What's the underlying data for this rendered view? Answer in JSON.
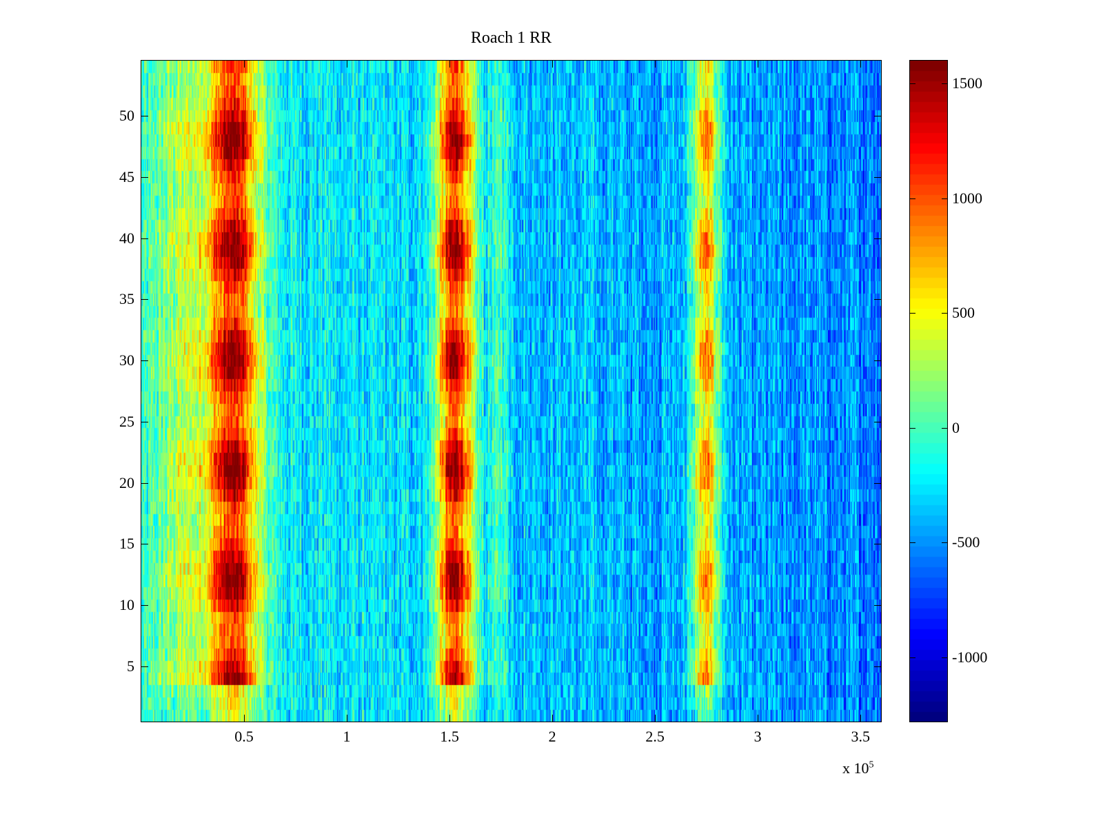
{
  "chart_data": {
    "type": "heatmap",
    "title": "Roach 1 RR",
    "xlabel": "",
    "ylabel": "",
    "x_multiplier_label": "x 10",
    "x_multiplier_exponent": "5",
    "xlim": [
      0,
      360000
    ],
    "ylim": [
      0.5,
      54.5
    ],
    "rows": 54,
    "columns": 720,
    "x_ticks": [
      {
        "value": 50000,
        "label": "0.5"
      },
      {
        "value": 100000,
        "label": "1"
      },
      {
        "value": 150000,
        "label": "1.5"
      },
      {
        "value": 200000,
        "label": "2"
      },
      {
        "value": 250000,
        "label": "2.5"
      },
      {
        "value": 300000,
        "label": "3"
      },
      {
        "value": 350000,
        "label": "3.5"
      }
    ],
    "y_ticks": [
      {
        "value": 5,
        "label": "5"
      },
      {
        "value": 10,
        "label": "10"
      },
      {
        "value": 15,
        "label": "15"
      },
      {
        "value": 20,
        "label": "20"
      },
      {
        "value": 25,
        "label": "25"
      },
      {
        "value": 30,
        "label": "30"
      },
      {
        "value": 35,
        "label": "35"
      },
      {
        "value": 40,
        "label": "40"
      },
      {
        "value": 45,
        "label": "45"
      },
      {
        "value": 50,
        "label": "50"
      }
    ],
    "colormap": "jet",
    "clim": [
      -1280,
      1600
    ],
    "colorbar_ticks": [
      {
        "value": 1500,
        "label": "1500"
      },
      {
        "value": 1000,
        "label": "1000"
      },
      {
        "value": 500,
        "label": "500"
      },
      {
        "value": 0,
        "label": "0"
      },
      {
        "value": -500,
        "label": "-500"
      },
      {
        "value": -1000,
        "label": "-1000"
      }
    ],
    "model": {
      "baseline_left": -150,
      "baseline_right": -550,
      "noise": 380,
      "bands": [
        {
          "center": 45000,
          "halfwidth": 13000,
          "amplitude": 1650
        },
        {
          "center": 20000,
          "halfwidth": 14000,
          "amplitude": 500
        },
        {
          "center": 153000,
          "halfwidth": 9000,
          "amplitude": 1750
        },
        {
          "center": 175000,
          "halfwidth": 5000,
          "amplitude": 350
        },
        {
          "center": 275000,
          "halfwidth": 7000,
          "amplitude": 1250
        }
      ]
    }
  }
}
